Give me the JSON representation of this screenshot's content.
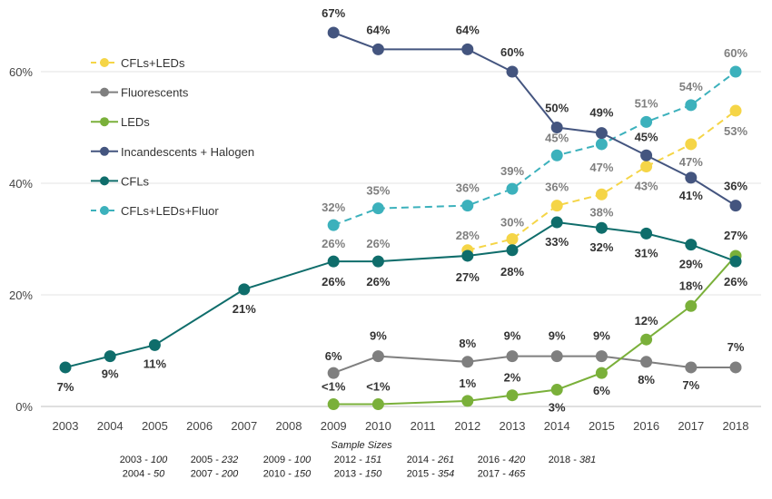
{
  "chart_data": {
    "type": "line",
    "title": "",
    "xlabel": "",
    "ylabel": "",
    "x": [
      2003,
      2004,
      2005,
      2006,
      2007,
      2008,
      2009,
      2010,
      2011,
      2012,
      2013,
      2014,
      2015,
      2016,
      2017,
      2018
    ],
    "x_tick_labels": [
      "2003",
      "2004",
      "2005",
      "2006",
      "2007",
      "2008",
      "2009",
      "2010",
      "2011",
      "2012",
      "2013",
      "2014",
      "2015",
      "2016",
      "2017",
      "2018"
    ],
    "ylim": [
      0,
      70
    ],
    "y_ticks": [
      0,
      20,
      40,
      60
    ],
    "y_tick_labels": [
      "0%",
      "20%",
      "40%",
      "60%"
    ],
    "grid": "horizontal",
    "legend_position": "top-left",
    "series": [
      {
        "name": "CFLs+LEDs",
        "color": "#f5d547",
        "style": "dashed",
        "x": [
          2012,
          2013,
          2014,
          2015,
          2016,
          2017,
          2018
        ],
        "values": [
          28,
          30,
          36,
          38,
          43,
          47,
          53
        ],
        "labels": [
          "28%",
          "30%",
          "36%",
          "38%",
          "43%",
          "47%",
          "53%"
        ]
      },
      {
        "name": "Fluorescents",
        "color": "#7f7f7f",
        "style": "solid",
        "x": [
          2009,
          2010,
          2012,
          2013,
          2014,
          2015,
          2016,
          2017,
          2018
        ],
        "values": [
          6,
          9,
          8,
          9,
          9,
          9,
          8,
          7,
          7
        ],
        "labels": [
          "6%",
          "9%",
          "8%",
          "9%",
          "9%",
          "9%",
          "8%",
          "7%",
          "7%"
        ]
      },
      {
        "name": "LEDs",
        "color": "#7ab03a",
        "style": "solid",
        "x": [
          2009,
          2010,
          2012,
          2013,
          2014,
          2015,
          2016,
          2017,
          2018
        ],
        "values": [
          0.4,
          0.4,
          1,
          2,
          3,
          6,
          12,
          18,
          27
        ],
        "labels": [
          "<1%",
          "<1%",
          "1%",
          "2%",
          "3%",
          "6%",
          "12%",
          "18%",
          "27%"
        ]
      },
      {
        "name": "Incandescents + Halogen",
        "color": "#44557f",
        "style": "solid",
        "x": [
          2009,
          2010,
          2012,
          2013,
          2014,
          2015,
          2016,
          2017,
          2018
        ],
        "values": [
          67,
          64,
          64,
          60,
          50,
          49,
          45,
          41,
          36
        ],
        "labels": [
          "67%",
          "64%",
          "64%",
          "60%",
          "50%",
          "49%",
          "45%",
          "41%",
          "36%"
        ]
      },
      {
        "name": "CFLs",
        "color": "#0f6d6b",
        "style": "solid",
        "x": [
          2003,
          2004,
          2005,
          2007,
          2009,
          2010,
          2012,
          2013,
          2014,
          2015,
          2016,
          2017,
          2018
        ],
        "values": [
          7,
          9,
          11,
          21,
          26,
          26,
          27,
          28,
          33,
          32,
          31,
          29,
          26
        ],
        "labels": [
          "7%",
          "9%",
          "11%",
          "21%",
          "26%",
          "26%",
          "27%",
          "28%",
          "33%",
          "32%",
          "31%",
          "29%",
          "26%"
        ]
      },
      {
        "name": "CFLs+LEDs+Fluor",
        "color": "#3cb1bc",
        "style": "dashed",
        "x": [
          2009,
          2010,
          2012,
          2013,
          2014,
          2015,
          2016,
          2017,
          2018
        ],
        "values": [
          32.5,
          35.5,
          36,
          39,
          45,
          47,
          51,
          54,
          60
        ],
        "labels": [
          "32%",
          "35%",
          "36%",
          "39%",
          "45%",
          "47%",
          "51%",
          "54%",
          "60%"
        ]
      }
    ],
    "gray_labels": [
      {
        "year": 2009,
        "text": "26%"
      },
      {
        "year": 2010,
        "text": "26%"
      }
    ],
    "sample_sizes": {
      "title": "Sample Sizes",
      "entries": [
        "2003 - 100",
        "2004 - 50",
        "2005 - 232",
        "2007 - 200",
        "2009 - 100",
        "2010 - 150",
        "2012 - 151",
        "2013 - 150",
        "2014 - 261",
        "2015 - 354",
        "2016 - 420",
        "2017 - 465",
        "2018 - 381"
      ]
    }
  }
}
